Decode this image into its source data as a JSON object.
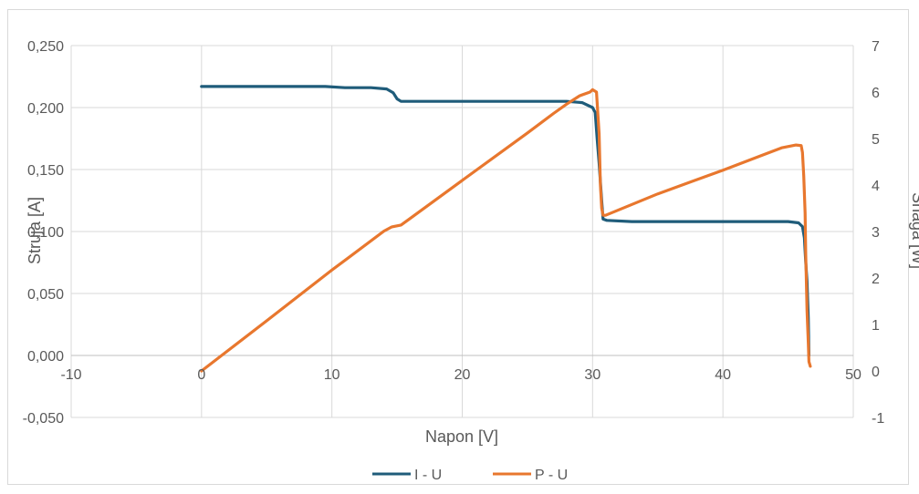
{
  "chart_data": {
    "type": "scatter",
    "title": "",
    "xlabel": "Napon [V]",
    "ylabel": "Struja [A]",
    "y2label": "Snaga [W]",
    "xlim": [
      -10,
      50
    ],
    "ylim": [
      -0.05,
      0.25
    ],
    "y2lim": [
      -1,
      7
    ],
    "x_ticks": [
      "-10",
      "0",
      "10",
      "20",
      "30",
      "40",
      "50"
    ],
    "y_ticks": [
      "-0,050",
      "0,000",
      "0,050",
      "0,100",
      "0,150",
      "0,200",
      "0,250"
    ],
    "y2_ticks": [
      "-1",
      "0",
      "1",
      "2",
      "3",
      "4",
      "5",
      "6",
      "7"
    ],
    "x_grid": true,
    "y_grid": true,
    "legend_position": "bottom",
    "series": [
      {
        "name": "I - U",
        "axis": "left",
        "color": "#1f5c7a",
        "x": [
          0,
          2,
          5,
          8,
          9.5,
          11,
          13,
          14.2,
          14.7,
          15.0,
          15.3,
          15.7,
          16.5,
          20,
          25,
          28,
          29.2,
          30.0,
          30.2,
          30.35,
          30.5,
          30.6,
          30.7,
          30.8,
          31.1,
          33,
          38,
          43,
          45,
          45.8,
          46.1,
          46.25,
          46.35,
          46.45,
          46.55,
          46.6
        ],
        "y": [
          0.217,
          0.217,
          0.217,
          0.217,
          0.217,
          0.216,
          0.216,
          0.215,
          0.212,
          0.207,
          0.205,
          0.205,
          0.205,
          0.205,
          0.205,
          0.205,
          0.204,
          0.2,
          0.196,
          0.175,
          0.155,
          0.14,
          0.125,
          0.11,
          0.109,
          0.108,
          0.108,
          0.108,
          0.108,
          0.107,
          0.104,
          0.095,
          0.075,
          0.06,
          0.03,
          0.0
        ]
      },
      {
        "name": "P - U",
        "axis": "right",
        "color": "#e8772e",
        "x": [
          0,
          5,
          10,
          14,
          14.6,
          15.3,
          16,
          20,
          25,
          27,
          28,
          29,
          29.8,
          30.0,
          30.3,
          30.5,
          30.6,
          30.7,
          30.8,
          31.0,
          35,
          40,
          43,
          44.5,
          45.6,
          46.0,
          46.1,
          46.2,
          46.3,
          46.35,
          46.45,
          46.55,
          46.6,
          46.7
        ],
        "y": [
          0,
          1.08,
          2.17,
          3.01,
          3.1,
          3.14,
          3.28,
          4.1,
          5.12,
          5.54,
          5.74,
          5.92,
          6.0,
          6.05,
          6.0,
          5.1,
          4.0,
          3.5,
          3.35,
          3.35,
          3.81,
          4.32,
          4.64,
          4.8,
          4.86,
          4.85,
          4.7,
          4.2,
          3.4,
          2.5,
          1.3,
          0.6,
          0.2,
          0.1
        ]
      }
    ]
  }
}
